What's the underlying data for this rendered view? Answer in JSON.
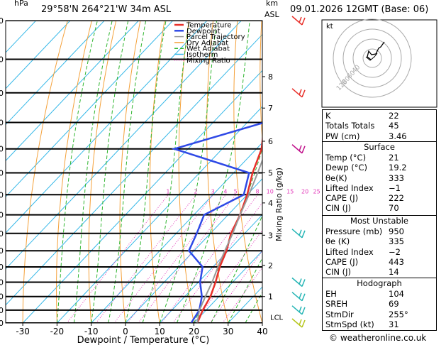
{
  "header": {
    "station": "29°58'N  264°21'W  34m  ASL",
    "hpa": "hPa",
    "km": "km",
    "asl": "ASL",
    "date": "09.01.2026  12GMT  (Base: 06)"
  },
  "footer": {
    "credit": "© weatheronline.co.uk"
  },
  "hodograph": {
    "label": "kt",
    "ring_labels": [
      "40",
      "60",
      "80",
      "120"
    ]
  },
  "stability": {
    "K": "22",
    "Totals Totals": "45",
    "PW (cm)": "3.46"
  },
  "surface": {
    "title": "Surface",
    "rows": [
      {
        "label": "Temp (°C)",
        "value": "21"
      },
      {
        "label": "Dewp (°C)",
        "value": "19.2"
      },
      {
        "label": "θe(K)",
        "value": "333"
      },
      {
        "label": "Lifted Index",
        "value": "−1"
      },
      {
        "label": "CAPE (J)",
        "value": "222"
      },
      {
        "label": "CIN (J)",
        "value": "70"
      }
    ]
  },
  "most_unstable": {
    "title": "Most Unstable",
    "rows": [
      {
        "label": "Pressure (mb)",
        "value": "950"
      },
      {
        "label": "θe (K)",
        "value": "335"
      },
      {
        "label": "Lifted Index",
        "value": "−2"
      },
      {
        "label": "CAPE (J)",
        "value": "443"
      },
      {
        "label": "CIN (J)",
        "value": "14"
      }
    ]
  },
  "hodograph_table": {
    "title": "Hodograph",
    "rows": [
      {
        "label": "EH",
        "value": "104"
      },
      {
        "label": "SREH",
        "value": "69"
      },
      {
        "label": "StmDir",
        "value": "255°"
      },
      {
        "label": "StmSpd (kt)",
        "value": "31"
      }
    ]
  },
  "chart_data": {
    "type": "line",
    "title": "",
    "xlabel": "Dewpoint / Temperature (°C)",
    "ylabel": "hPa",
    "y2label": "Mixing Ratio (g/kg)",
    "xlim": [
      -35,
      40
    ],
    "pressure_levels": [
      300,
      350,
      400,
      450,
      500,
      550,
      600,
      650,
      700,
      750,
      800,
      850,
      900,
      950,
      1000
    ],
    "x_ticks": [
      -30,
      -20,
      -10,
      0,
      10,
      20,
      30,
      40
    ],
    "km_ticks": [
      {
        "km": "1",
        "p": 900
      },
      {
        "km": "2",
        "p": 795
      },
      {
        "km": "3",
        "p": 705
      },
      {
        "km": "4",
        "p": 620
      },
      {
        "km": "5",
        "p": 550
      },
      {
        "km": "6",
        "p": 485
      },
      {
        "km": "7",
        "p": 425
      },
      {
        "km": "8",
        "p": 375
      }
    ],
    "lcl_label": "LCL",
    "lcl_p": 985,
    "mixing_ratio_labels": [
      "1",
      "2",
      "3",
      "4",
      "5",
      "8",
      "10",
      "15",
      "20",
      "25"
    ],
    "legend": [
      "Temperature",
      "Dewpoint",
      "Parcel Trajectory",
      "Dry Adiabat",
      "Wet Adiabat",
      "Isotherm",
      "Mixing Ratio"
    ],
    "colors": {
      "temperature": "#e8302a",
      "dewpoint": "#2f49e6",
      "parcel": "#999999",
      "dry_adiabat": "#f4a13a",
      "wet_adiabat": "#2fb52f",
      "isotherm": "#36b8e8",
      "mixing_ratio": "#e33bbb"
    },
    "series": [
      {
        "name": "Temperature",
        "points": [
          [
            1000,
            21
          ],
          [
            950,
            19
          ],
          [
            900,
            17.5
          ],
          [
            850,
            15
          ],
          [
            800,
            12
          ],
          [
            750,
            9.5
          ],
          [
            700,
            6
          ],
          [
            650,
            3.5
          ],
          [
            600,
            0
          ],
          [
            550,
            -4.5
          ],
          [
            500,
            -8.5
          ],
          [
            450,
            -15
          ],
          [
            400,
            -20
          ],
          [
            350,
            -27
          ],
          [
            300,
            -34
          ]
        ]
      },
      {
        "name": "Dewpoint",
        "points": [
          [
            1000,
            19.2
          ],
          [
            950,
            18
          ],
          [
            900,
            15
          ],
          [
            850,
            10.5
          ],
          [
            800,
            7
          ],
          [
            750,
            -1.5
          ],
          [
            700,
            -4
          ],
          [
            650,
            -7
          ],
          [
            600,
            -1
          ],
          [
            550,
            -5.5
          ],
          [
            500,
            -34
          ],
          [
            450,
            -15
          ],
          [
            400,
            -21
          ],
          [
            350,
            -27.5
          ],
          [
            300,
            -34.5
          ]
        ]
      },
      {
        "name": "Parcel Trajectory",
        "points": [
          [
            1000,
            21
          ],
          [
            950,
            18
          ],
          [
            900,
            16
          ],
          [
            850,
            14
          ],
          [
            800,
            11.5
          ],
          [
            750,
            9
          ],
          [
            700,
            6.5
          ],
          [
            650,
            3.5
          ],
          [
            600,
            0.5
          ],
          [
            550,
            -3
          ],
          [
            500,
            -7
          ],
          [
            450,
            -12
          ],
          [
            400,
            -18.5
          ],
          [
            350,
            -25.5
          ],
          [
            300,
            -34
          ]
        ]
      }
    ]
  }
}
